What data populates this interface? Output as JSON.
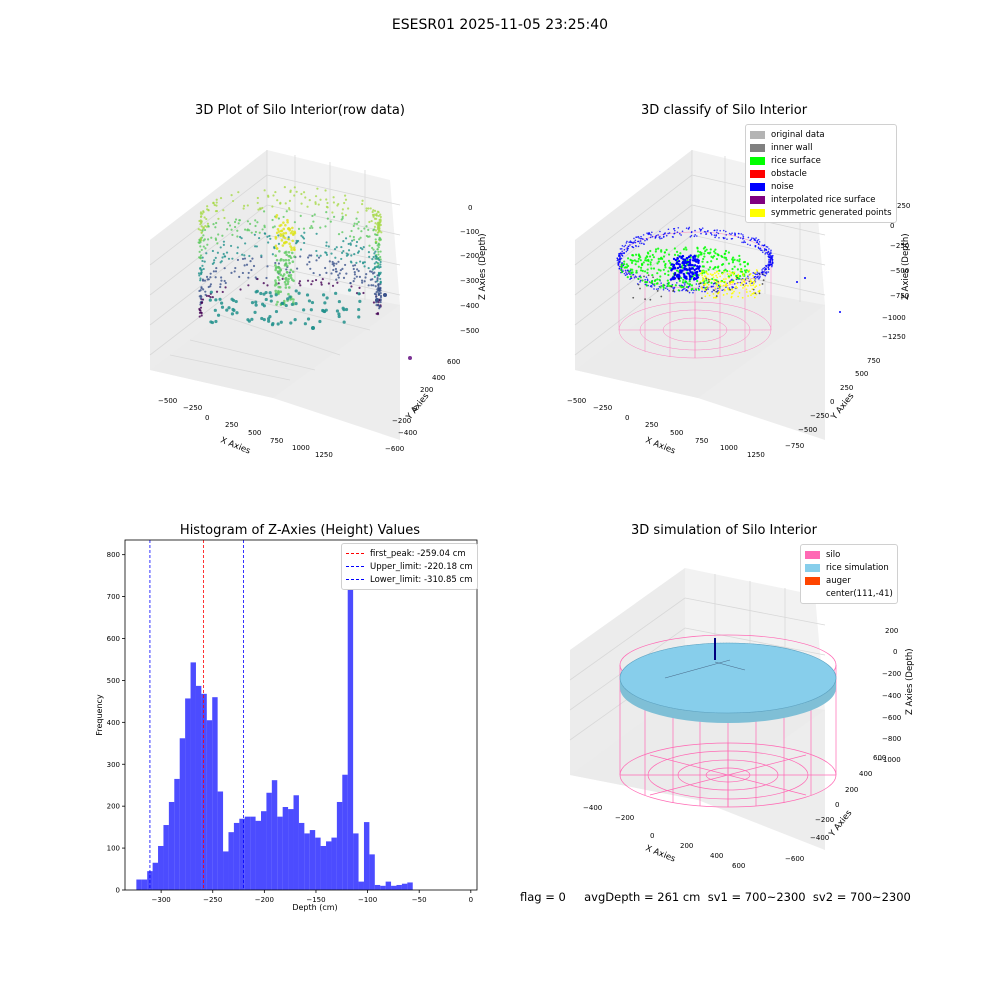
{
  "suptitle": "ESESR01 2025-11-05 23:25:40",
  "status_text": "flag = 0     avgDepth = 261 cm  sv1 = 700~2300  sv2 = 700~2300",
  "chart_data": [
    {
      "type": "scatter3d",
      "title": "3D Plot of Silo Interior(row data)",
      "xlabel": "X Axies",
      "ylabel": "Y Axies",
      "zlabel": "Z Axies (Depth)",
      "xticks": [
        "−500",
        "−250",
        "0",
        "250",
        "500",
        "750",
        "1000",
        "1250"
      ],
      "yticks": [
        "−600",
        "−400",
        "−200",
        "0",
        "200",
        "400",
        "600"
      ],
      "zticks": [
        "0",
        "−100",
        "−200",
        "−300",
        "−400",
        "−500"
      ],
      "xlim": [
        -600,
        1300
      ],
      "ylim": [
        -650,
        650
      ],
      "zlim": [
        -550,
        20
      ],
      "colormap": "viridis"
    },
    {
      "type": "scatter3d",
      "title": "3D classify of Silo Interior",
      "xlabel": "X Axies",
      "ylabel": "Y Axies",
      "zlabel": "Z Axies (Depth)",
      "xticks": [
        "−500",
        "−250",
        "0",
        "250",
        "500",
        "750",
        "1000",
        "1250"
      ],
      "yticks": [
        "−750",
        "−500",
        "−250",
        "0",
        "250",
        "500",
        "750"
      ],
      "zticks": [
        "250",
        "0",
        "−250",
        "−500",
        "−750",
        "−1000",
        "−1250"
      ],
      "legend": [
        {
          "label": "original data",
          "color": "#b4b4b4"
        },
        {
          "label": "inner wall",
          "color": "#808080"
        },
        {
          "label": "rice surface",
          "color": "#00ff00"
        },
        {
          "label": "obstacle",
          "color": "#ff0000"
        },
        {
          "label": "noise",
          "color": "#0000ff"
        },
        {
          "label": "interpolated rice surface",
          "color": "#800080"
        },
        {
          "label": "symmetric generated points",
          "color": "#ffff00"
        }
      ],
      "legend_loc": "upper right"
    },
    {
      "type": "bar",
      "title": "Histogram of Z-Axies (Height) Values",
      "xlabel": "Depth (cm)",
      "ylabel": "Frequency",
      "xlim": [
        -335,
        6
      ],
      "ylim": [
        0,
        835
      ],
      "xticks": [
        -300,
        -250,
        -200,
        -150,
        -100,
        -50,
        0
      ],
      "yticks": [
        0,
        100,
        200,
        300,
        400,
        500,
        600,
        700,
        800
      ],
      "bin_width": 5.25,
      "bin_start": -324,
      "values": [
        25,
        25,
        45,
        65,
        105,
        155,
        210,
        265,
        362,
        457,
        543,
        487,
        468,
        405,
        460,
        235,
        92,
        138,
        160,
        170,
        175,
        175,
        165,
        188,
        232,
        262,
        175,
        198,
        193,
        226,
        160,
        135,
        143,
        125,
        105,
        116,
        125,
        210,
        275,
        795,
        135,
        20,
        162,
        85,
        12,
        10,
        20,
        10,
        12,
        15,
        18
      ],
      "color": "#0000ff",
      "vlines": [
        {
          "x": -259.04,
          "color": "#ff0000",
          "label": "first_peak: -259.04 cm"
        },
        {
          "x": -220.18,
          "color": "#0000ff",
          "label": "Upper_limit: -220.18 cm"
        },
        {
          "x": -310.85,
          "color": "#0000ff",
          "label": "Lower_limit: -310.85 cm"
        }
      ],
      "legend_loc": "upper right"
    },
    {
      "type": "surface3d",
      "title": "3D simulation of Silo Interior",
      "xlabel": "X Axies",
      "ylabel": "Y Axies",
      "zlabel": "Z Axies (Depth)",
      "xticks": [
        "−400",
        "−200",
        "0",
        "200",
        "400",
        "600"
      ],
      "yticks": [
        "−600",
        "−400",
        "−200",
        "0",
        "200",
        "400",
        "600"
      ],
      "zticks": [
        "200",
        "0",
        "−200",
        "−400",
        "−600",
        "−800",
        "−1000"
      ],
      "legend": [
        {
          "label": "silo",
          "color": "#ff69b4"
        },
        {
          "label": "rice simulation",
          "color": "#87ceeb"
        },
        {
          "label": "auger",
          "color": "#ff4500"
        },
        {
          "label": "center(111,-41)",
          "color": ""
        }
      ],
      "legend_loc": "upper right"
    }
  ]
}
